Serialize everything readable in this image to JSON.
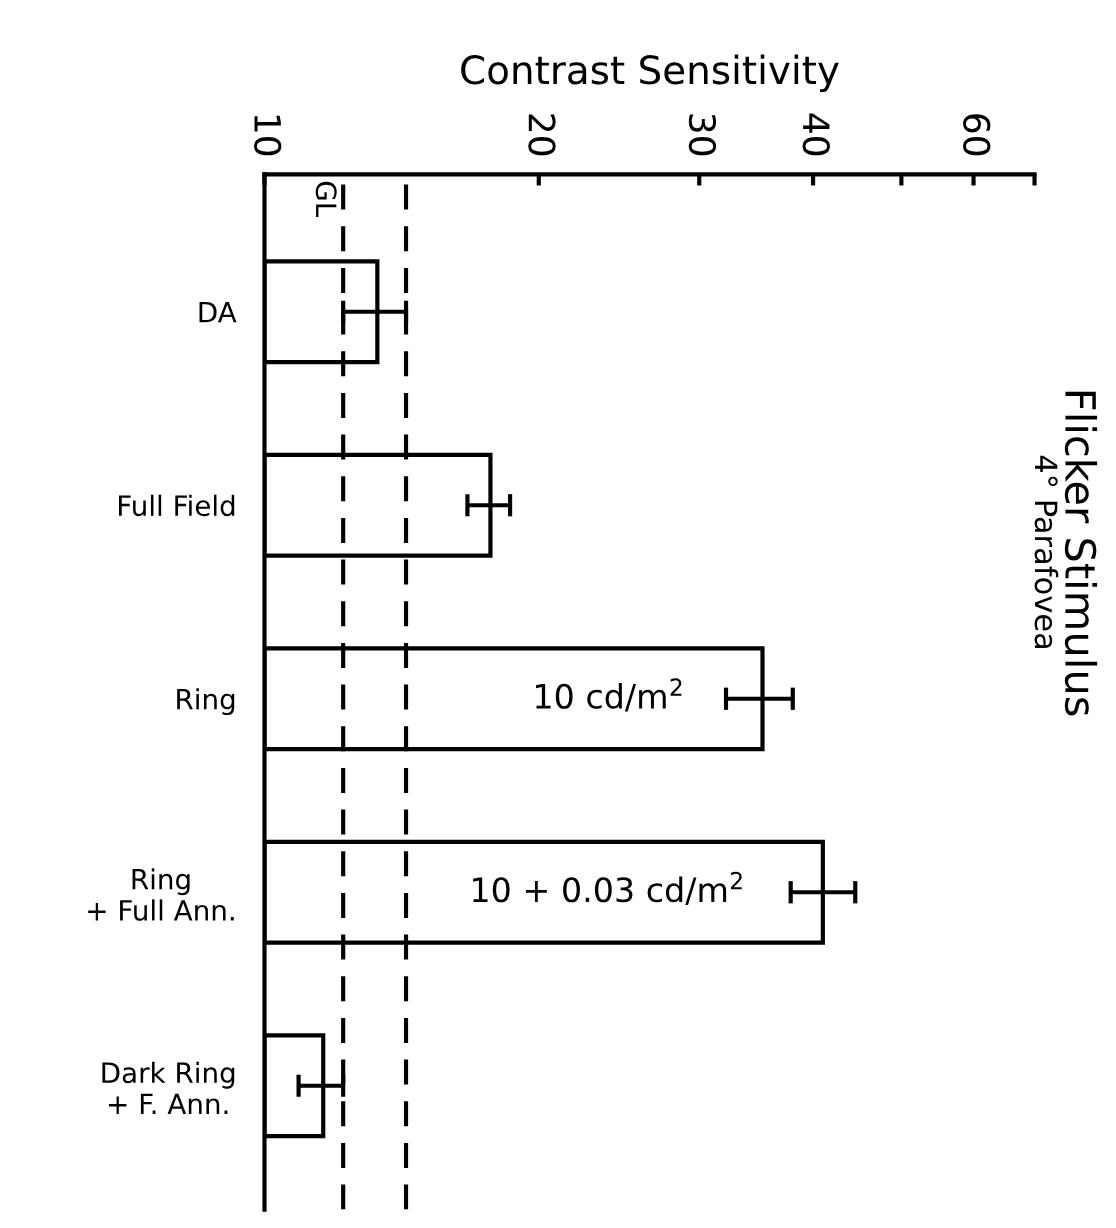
{
  "chart_data": {
    "type": "bar",
    "orientation": "horizontal",
    "title": "Flicker Stimulus",
    "subtitle": "4° Parafovea",
    "xlabel": "Contrast Sensitivity",
    "categories": [
      "DA",
      "Full Field",
      "Ring",
      "Ring\n+ Full Ann.",
      "Dark Ring\n+ F. Ann."
    ],
    "values": [
      13.3,
      17.7,
      35.2,
      41.0,
      11.6
    ],
    "errors": [
      [
        12.2,
        14.3
      ],
      [
        16.7,
        18.6
      ],
      [
        32.1,
        38.0
      ],
      [
        37.8,
        44.5
      ],
      [
        10.9,
        12.2
      ]
    ],
    "color": "#ffffff",
    "log": "x",
    "xlim": [
      10,
      70
    ],
    "xticks": [
      10,
      20,
      30,
      40,
      {
        "value": 50,
        "label": null
      },
      60,
      {
        "value": 70,
        "label": null
      }
    ],
    "ref_lines": [
      {
        "axis": "x",
        "value": 12.2,
        "label": "GL",
        "line_style": "dashed",
        "color": "#000000"
      },
      {
        "axis": "x",
        "value": 14.3,
        "line_style": "dashed",
        "color": "#000000"
      }
    ],
    "annotations": [
      {
        "text": "10 cd/m$^{2}$",
        "x": 35.2,
        "y": "Ring"
      },
      {
        "text": "10 + 0.03 cd/m$^{2}$",
        "x": 41.0,
        "y": "Ring\n+ Full Ann."
      }
    ],
    "grid": false,
    "legend": false
  }
}
